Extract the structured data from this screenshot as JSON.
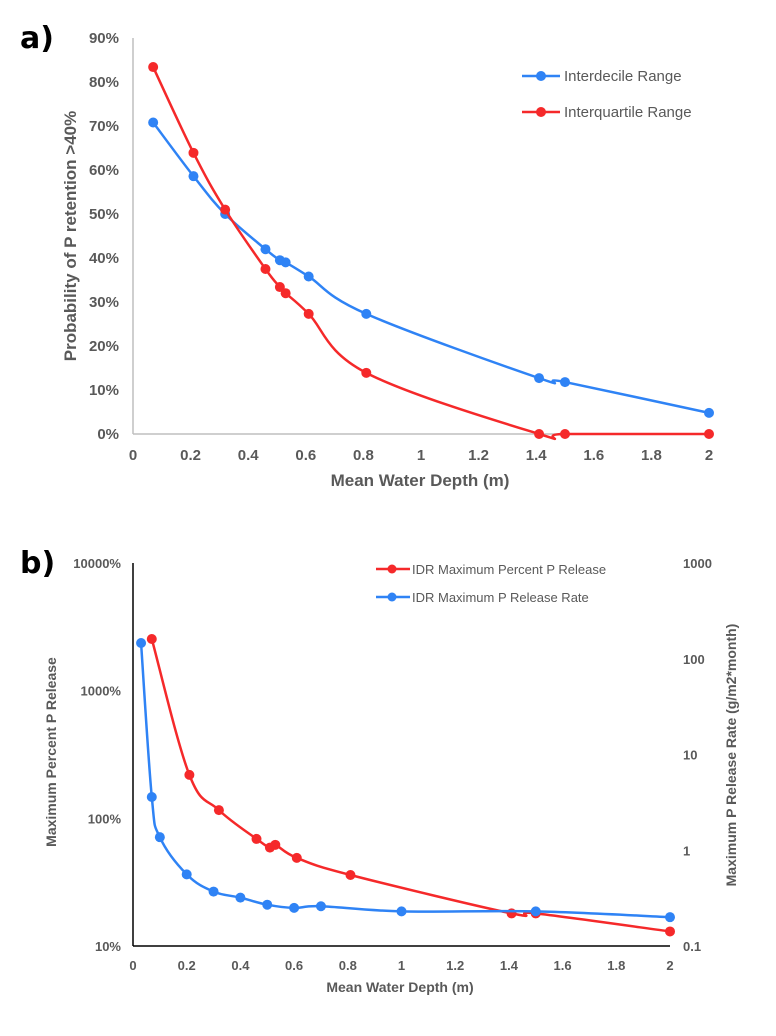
{
  "chart_data": [
    {
      "panel": "a)",
      "type": "line",
      "title": "",
      "xlabel": "Mean Water Depth (m)",
      "ylabel": "Probability of P retention >40%",
      "xlim": [
        0,
        2
      ],
      "ylim": [
        0,
        90
      ],
      "x_ticks": [
        "0",
        "0.2",
        "0.4",
        "0.6",
        "0.8",
        "1",
        "1.2",
        "1.4",
        "1.6",
        "1.8",
        "2"
      ],
      "x_tick_values": [
        0,
        0.2,
        0.4,
        0.6,
        0.8,
        1.0,
        1.2,
        1.4,
        1.6,
        1.8,
        2.0
      ],
      "y_ticks": [
        "0%",
        "10%",
        "20%",
        "30%",
        "40%",
        "50%",
        "60%",
        "70%",
        "80%",
        "90%"
      ],
      "y_tick_values": [
        0,
        10,
        20,
        30,
        40,
        50,
        60,
        70,
        80,
        90
      ],
      "grid": false,
      "legend_position": "top-right",
      "series": [
        {
          "name": "Interdecile Range",
          "color": "#2f83f5",
          "x": [
            0.07,
            0.21,
            0.32,
            0.46,
            0.51,
            0.53,
            0.61,
            0.81,
            1.41,
            1.5,
            2.0
          ],
          "values": [
            70.8,
            58.6,
            50.0,
            42.0,
            39.5,
            39.0,
            35.8,
            27.3,
            12.7,
            11.8,
            4.8
          ]
        },
        {
          "name": "Interquartile Range",
          "color": "#f5292a",
          "x": [
            0.07,
            0.21,
            0.32,
            0.46,
            0.51,
            0.53,
            0.61,
            0.81,
            1.41,
            1.5,
            2.0
          ],
          "values": [
            83.4,
            63.9,
            51.0,
            37.5,
            33.4,
            32.0,
            27.3,
            13.9,
            0,
            0,
            0
          ]
        }
      ]
    },
    {
      "panel": "b)",
      "type": "line",
      "title": "",
      "xlabel": "Mean Water Depth (m)",
      "ylabel": "Maximum Percent P Release",
      "ylabel_right": "Maximum P Release Rate (g/m2*month)",
      "xlim": [
        0,
        2
      ],
      "ylim": [
        10,
        10000
      ],
      "ylim_right": [
        0.1,
        1000
      ],
      "y_scale": "log",
      "x_ticks": [
        "0",
        "0.2",
        "0.4",
        "0.6",
        "0.8",
        "1",
        "1.2",
        "1.4",
        "1.6",
        "1.8",
        "2"
      ],
      "x_tick_values": [
        0,
        0.2,
        0.4,
        0.6,
        0.8,
        1.0,
        1.2,
        1.4,
        1.6,
        1.8,
        2.0
      ],
      "y_ticks": [
        "10%",
        "100%",
        "1000%",
        "10000%"
      ],
      "y_tick_values": [
        10,
        100,
        1000,
        10000
      ],
      "y_ticks_right": [
        "0.1",
        "1",
        "10",
        "100",
        "1000"
      ],
      "y_tick_values_right": [
        0.1,
        1,
        10,
        100,
        1000
      ],
      "grid": false,
      "legend_position": "top-right",
      "series": [
        {
          "name": "IDR Maximum Percent P Release",
          "color": "#f5292a",
          "axis": "left",
          "x": [
            0.07,
            0.21,
            0.32,
            0.46,
            0.51,
            0.53,
            0.61,
            0.81,
            1.41,
            1.5,
            2.0
          ],
          "values": [
            2540,
            219,
            116,
            69,
            59,
            62,
            49,
            36,
            18,
            18,
            13
          ]
        },
        {
          "name": "IDR Maximum P Release Rate",
          "color": "#2f83f5",
          "axis": "right",
          "x": [
            0.03,
            0.07,
            0.1,
            0.2,
            0.3,
            0.4,
            0.5,
            0.6,
            0.7,
            1.0,
            1.5,
            2.0
          ],
          "values": [
            146,
            3.6,
            1.37,
            0.56,
            0.37,
            0.32,
            0.27,
            0.25,
            0.26,
            0.23,
            0.23,
            0.2
          ]
        }
      ]
    }
  ]
}
